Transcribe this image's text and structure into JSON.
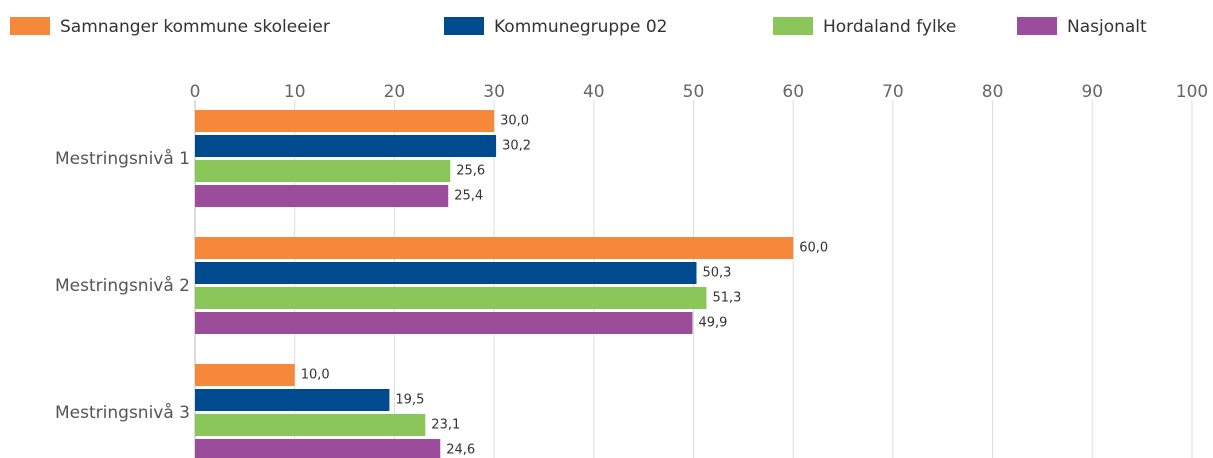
{
  "chart_data": {
    "type": "bar",
    "orientation": "horizontal",
    "categories": [
      "Mestringsnivå 1",
      "Mestringsnivå 2",
      "Mestringsnivå 3"
    ],
    "series": [
      {
        "name": "Samnanger kommune skoleeier",
        "color": "#f5883a",
        "values": [
          30.0,
          60.0,
          10.0
        ],
        "value_labels": [
          "30,0",
          "60,0",
          "10,0"
        ]
      },
      {
        "name": "Kommunegruppe 02",
        "color": "#004b8f",
        "values": [
          30.2,
          50.3,
          19.5
        ],
        "value_labels": [
          "30,2",
          "50,3",
          "19,5"
        ]
      },
      {
        "name": "Hordaland fylke",
        "color": "#8bc65a",
        "values": [
          25.6,
          51.3,
          23.1
        ],
        "value_labels": [
          "25,6",
          "51,3",
          "23,1"
        ]
      },
      {
        "name": "Nasjonalt",
        "color": "#9b4c9b",
        "values": [
          25.4,
          49.9,
          24.6
        ],
        "value_labels": [
          "25,4",
          "49,9",
          "24,6"
        ]
      }
    ],
    "xlim": [
      0,
      100
    ],
    "xticks": [
      0,
      10,
      20,
      30,
      40,
      50,
      60,
      70,
      80,
      90,
      100
    ],
    "grid": true,
    "legend": "top"
  }
}
